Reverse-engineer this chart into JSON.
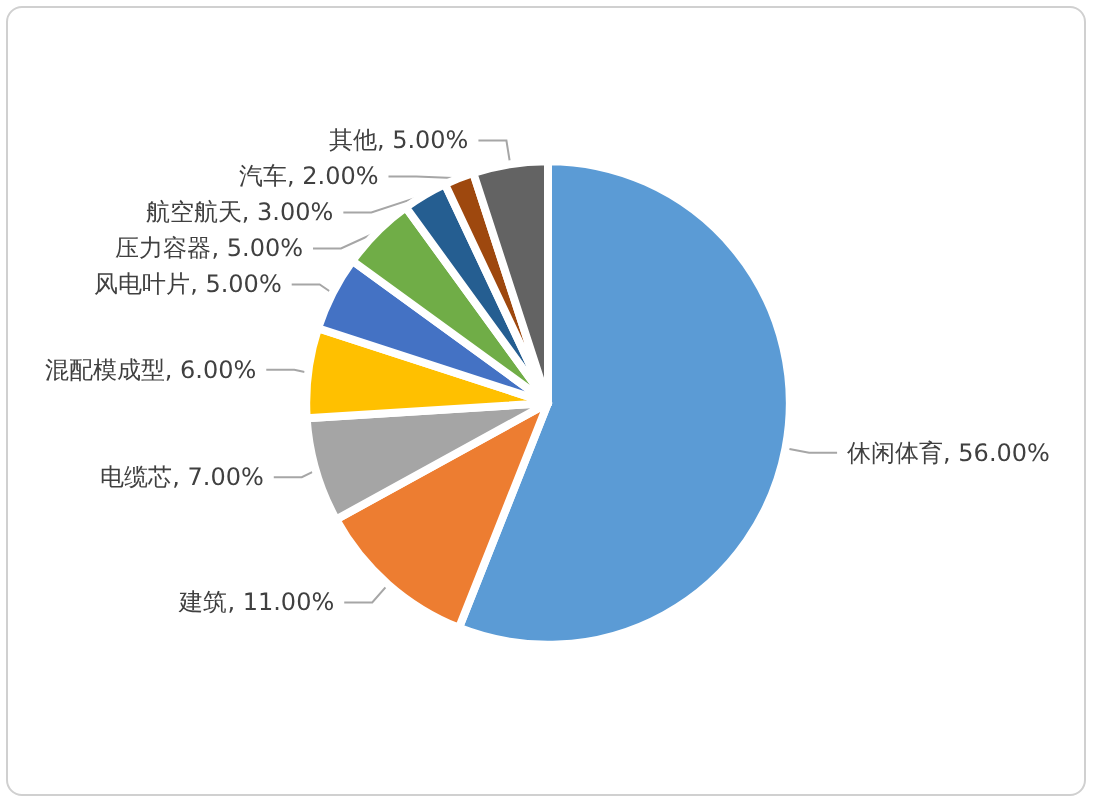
{
  "chart_data": {
    "type": "pie",
    "categories": [
      "休闲体育",
      "建筑",
      "电缆芯",
      "混配模成型",
      "风电叶片",
      "压力容器",
      "航空航天",
      "汽车",
      "其他"
    ],
    "values": [
      56,
      11,
      7,
      6,
      5,
      5,
      3,
      2,
      5
    ],
    "value_labels": [
      "56.00%",
      "11.00%",
      "7.00%",
      "6.00%",
      "5.00%",
      "5.00%",
      "3.00%",
      "2.00%",
      "5.00%"
    ],
    "colors": [
      "#5b9bd5",
      "#ed7d31",
      "#a5a5a5",
      "#ffc000",
      "#4472c4",
      "#70ad47",
      "#255e91",
      "#9e480e",
      "#636363"
    ],
    "legend": false
  }
}
